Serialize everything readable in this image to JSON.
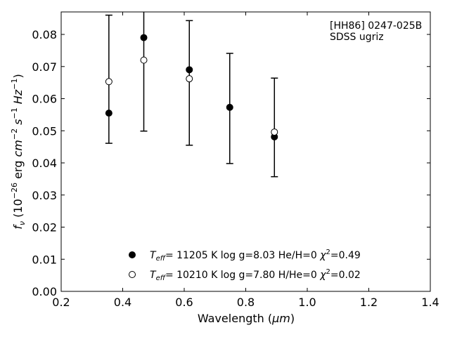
{
  "chart_data": {
    "type": "scatter",
    "xlabel_main": "Wavelength (",
    "xlabel_unit": "μm",
    "xlabel_close": ")",
    "ylabel": {
      "f": "f",
      "nu": "ν",
      "open": " (10",
      "exp26": "−26",
      "erg": " erg ",
      "cm": "cm",
      "expm2": "−2",
      "s": " s",
      "expm1": "−1",
      "hz": " Hz",
      "expm1b": "−1",
      "close": ")"
    },
    "xlim": [
      0.2,
      1.4
    ],
    "ylim": [
      0.0,
      0.087
    ],
    "xticks": [
      "0.2",
      "0.4",
      "0.6",
      "0.8",
      "1.0",
      "1.2",
      "1.4"
    ],
    "yticks": [
      "0.00",
      "0.01",
      "0.02",
      "0.03",
      "0.04",
      "0.05",
      "0.06",
      "0.07",
      "0.08"
    ],
    "annotation": [
      "[HH86] 0247-025B",
      "SDSS ugriz"
    ],
    "observed_errorbars": [
      {
        "x": 0.3551,
        "low": 0.0461,
        "high": 0.086
      },
      {
        "x": 0.4686,
        "low": 0.0499,
        "high": 0.0895
      },
      {
        "x": 0.6166,
        "low": 0.0455,
        "high": 0.0843
      },
      {
        "x": 0.748,
        "low": 0.0398,
        "high": 0.0741
      },
      {
        "x": 0.8932,
        "low": 0.0357,
        "high": 0.0664
      }
    ],
    "series": [
      {
        "name": "model_he",
        "marker": "filled",
        "x": [
          0.3551,
          0.4686,
          0.6166,
          0.748,
          0.8932
        ],
        "y": [
          0.0555,
          0.079,
          0.069,
          0.0573,
          0.0481
        ]
      },
      {
        "name": "model_h",
        "marker": "open",
        "x": [
          0.3551,
          0.4686,
          0.6166,
          0.748,
          0.8932
        ],
        "y": [
          0.0653,
          0.072,
          0.0662,
          null,
          0.0496
        ]
      }
    ],
    "legend": [
      {
        "marker": "filled",
        "teff_label": "T",
        "teff_sub": "eff",
        "text": "= 11205 K  log g=8.03  He/H=0  ",
        "chi": "χ",
        "chi_exp": "2",
        "chi_val": "=0.49"
      },
      {
        "marker": "open",
        "teff_label": "T",
        "teff_sub": "eff",
        "text": "= 10210 K  log g=7.80  H/He=0  ",
        "chi": "χ",
        "chi_exp": "2",
        "chi_val": "=0.02"
      }
    ],
    "legend_position": "bottom-center",
    "grid": false,
    "colors": {
      "marker": "#000000",
      "open_fill": "#ffffff",
      "axis": "#000000"
    }
  }
}
